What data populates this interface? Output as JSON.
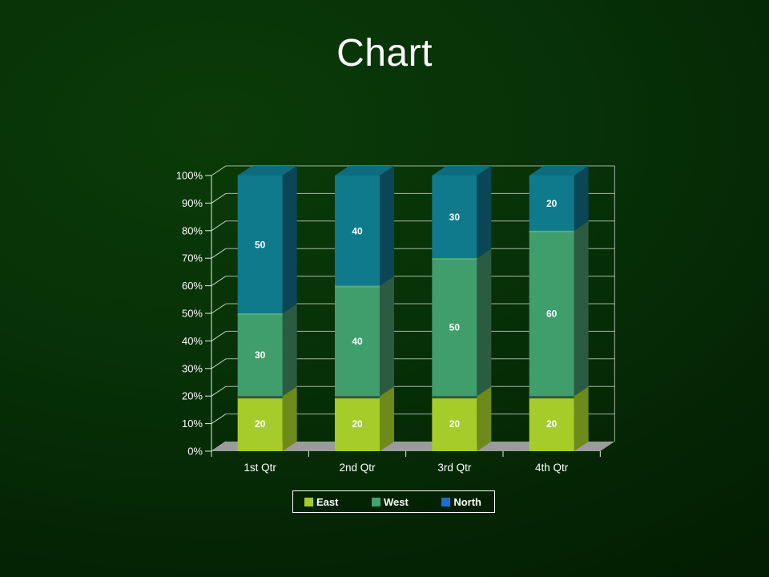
{
  "slide": {
    "title": "Chart"
  },
  "chart_data": {
    "type": "bar",
    "subtype": "3d-100-percent-stacked-column",
    "title": "Chart",
    "categories": [
      "1st Qtr",
      "2nd Qtr",
      "3rd Qtr",
      "4th Qtr"
    ],
    "series": [
      {
        "name": "East",
        "values": [
          20,
          20,
          20,
          20
        ],
        "front_color": "#a6cc2a",
        "side_color": "#6d8a1a",
        "top_edge_color": "#2e5a45",
        "legend_color": "#a6cc2a"
      },
      {
        "name": "West",
        "values": [
          30,
          40,
          50,
          60
        ],
        "front_color": "#3f9e6c",
        "side_color": "#2b5c42",
        "top_edge_color": "#55ad7f",
        "legend_color": "#41a372"
      },
      {
        "name": "North",
        "values": [
          50,
          40,
          30,
          20
        ],
        "front_color": "#0f7a8c",
        "side_color": "#0a4656",
        "top_color": "#0d6d7f",
        "legend_color": "#1b6fd2"
      }
    ],
    "y_axis": {
      "min": 0,
      "max": 100,
      "tick_labels": [
        "0%",
        "10%",
        "20%",
        "30%",
        "40%",
        "50%",
        "60%",
        "70%",
        "80%",
        "90%",
        "100%"
      ]
    },
    "value_labels_shown": true,
    "legend_position": "bottom",
    "gridlines": true
  },
  "colors": {
    "background_start": "#0b3b08",
    "background_end": "#021a02",
    "text": "#ffffff",
    "gridline": "#ccd8cc",
    "axis": "#e6ece6",
    "floor": "#9b9b9b",
    "legend_border": "#ffffff"
  }
}
